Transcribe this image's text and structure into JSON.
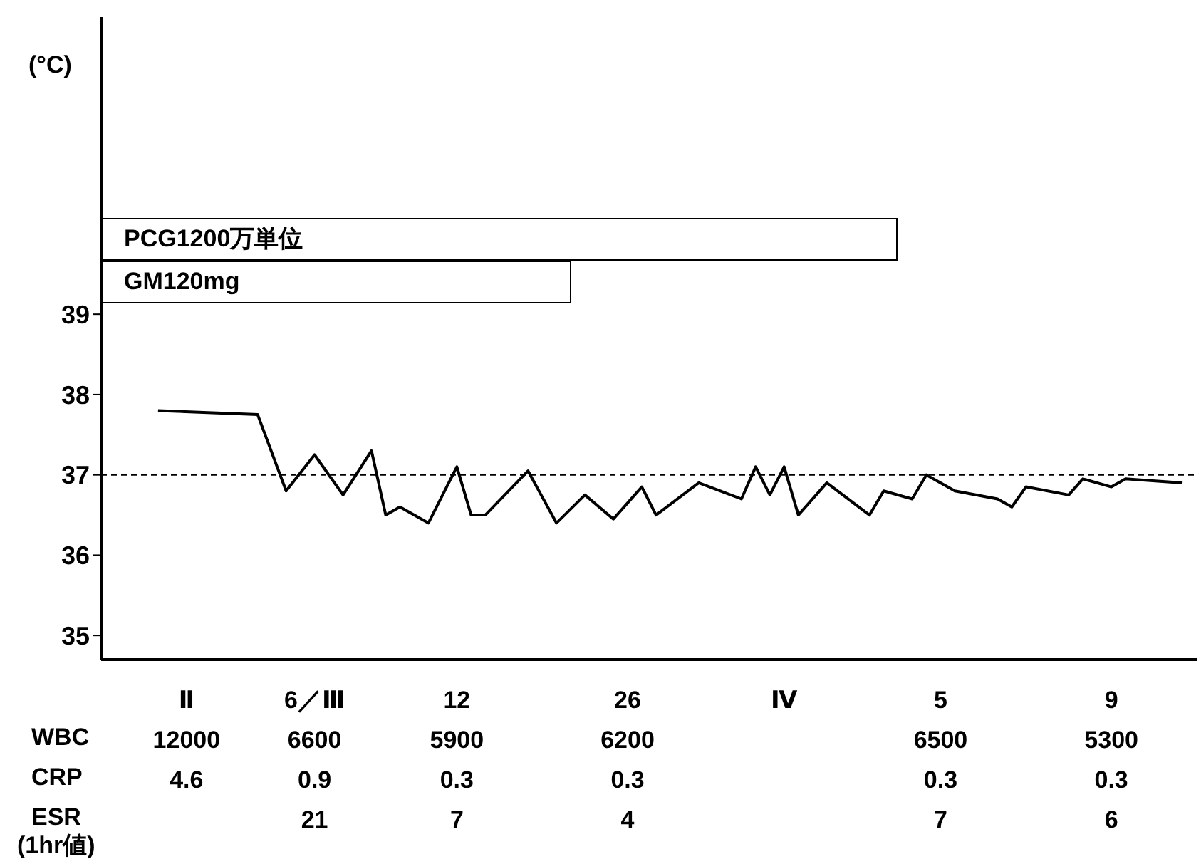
{
  "chart_data": {
    "type": "line",
    "ylabel": "(°C)",
    "categories": [
      null,
      null,
      null,
      null,
      null,
      null,
      "Ⅱ\n12000\n4.6\n",
      null,
      null,
      null,
      null,
      null,
      null,
      null,
      null,
      "6／Ⅲ\n6600\n0.9\n21",
      null,
      null,
      null,
      null,
      null,
      null,
      null,
      null,
      null,
      "12\n5900\n0.3\n7",
      null,
      null,
      null,
      null,
      null,
      null,
      null,
      null,
      null,
      null,
      null,
      "26\n6200\n0.3\n4",
      null,
      null,
      null,
      null,
      null,
      null,
      null,
      null,
      null,
      null,
      "Ⅳ\n\n\n",
      null,
      null,
      null,
      null,
      null,
      null,
      null,
      null,
      null,
      null,
      "5\n6500\n0.3\n7",
      null,
      null,
      null,
      null,
      null,
      null,
      null,
      null,
      null,
      null,
      null,
      "9\n5300\n0.3\n6",
      null,
      null,
      null,
      null,
      null,
      null
    ],
    "series": [
      {
        "color": "#000000",
        "values": [
          null,
          null,
          null,
          null,
          37.8,
          null,
          null,
          null,
          null,
          null,
          null,
          37.75,
          null,
          36.8,
          null,
          37.25,
          null,
          36.75,
          null,
          37.3,
          36.5,
          36.6,
          null,
          36.4,
          null,
          37.1,
          36.5,
          36.5,
          null,
          null,
          37.05,
          null,
          36.4,
          null,
          36.75,
          null,
          36.45,
          null,
          36.85,
          36.5,
          null,
          null,
          36.9,
          null,
          null,
          36.7,
          37.1,
          36.75,
          37.1,
          36.5,
          null,
          36.9,
          null,
          null,
          36.5,
          36.8,
          null,
          36.7,
          37,
          null,
          36.8,
          null,
          null,
          36.7,
          36.6,
          36.85,
          null,
          null,
          36.75,
          36.95,
          null,
          36.85,
          36.95,
          null,
          null,
          null,
          36.9,
          null
        ]
      }
    ],
    "ylim": [
      34.7,
      42.7
    ],
    "yticks": [
      35,
      36,
      37,
      38,
      39
    ],
    "ref_lines": [
      {
        "axis": "y",
        "value": 37,
        "line_style": "dashed",
        "color": "#000000"
      }
    ],
    "annotations": [
      "PCG1200万単位",
      "GM120mg",
      "WBC",
      "CRP",
      "ESR",
      "(1hr値)"
    ],
    "marker": "none",
    "line_style": "solid",
    "grid": false,
    "legend": false
  }
}
